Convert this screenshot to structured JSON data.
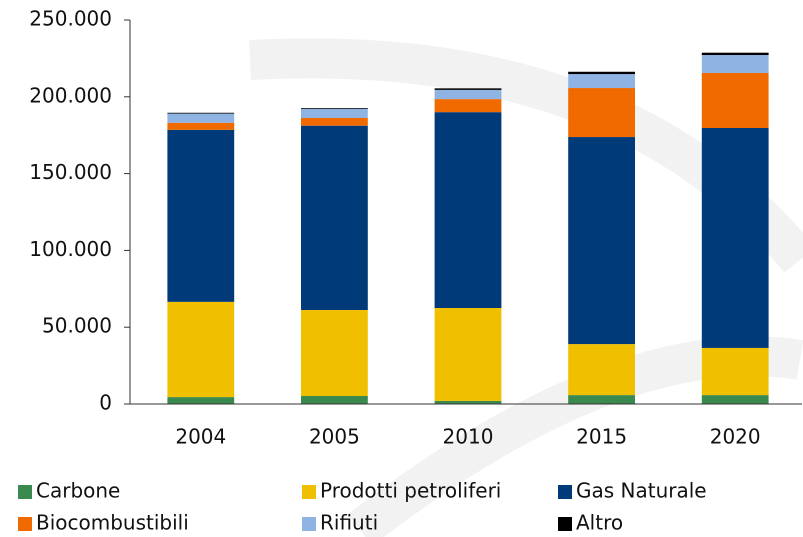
{
  "chart_data": {
    "type": "stacked_bar",
    "categories": [
      "2004",
      "2005",
      "2010",
      "2015",
      "2020"
    ],
    "series": [
      {
        "name": "Carbone",
        "color": "#3a8a4f",
        "values": [
          4500,
          5200,
          2000,
          5800,
          5800
        ]
      },
      {
        "name": "Prodotti petroliferi",
        "color": "#f0c000",
        "values": [
          62000,
          56000,
          60500,
          33200,
          30700
        ]
      },
      {
        "name": "Gas Naturale",
        "color": "#003a78",
        "values": [
          112000,
          120000,
          127500,
          134800,
          143200
        ]
      },
      {
        "name": "Biocombustibili",
        "color": "#f06a00",
        "values": [
          4600,
          5000,
          8500,
          31900,
          35800
        ]
      },
      {
        "name": "Rifiuti",
        "color": "#8fb4e3",
        "values": [
          6000,
          6000,
          6000,
          9100,
          11700
        ]
      },
      {
        "name": "Altro",
        "color": "#000000",
        "values": [
          500,
          500,
          1000,
          1500,
          1500
        ]
      }
    ],
    "ylim": [
      0,
      250000
    ],
    "yticks": [
      0,
      {
        "value": 50000,
        "label": "50.000"
      },
      {
        "value": 100000,
        "label": "100.000"
      },
      {
        "value": 150000,
        "label": "150.000"
      },
      {
        "value": 200000,
        "label": "200.000"
      },
      {
        "value": 250000,
        "label": "250.000"
      }
    ]
  }
}
